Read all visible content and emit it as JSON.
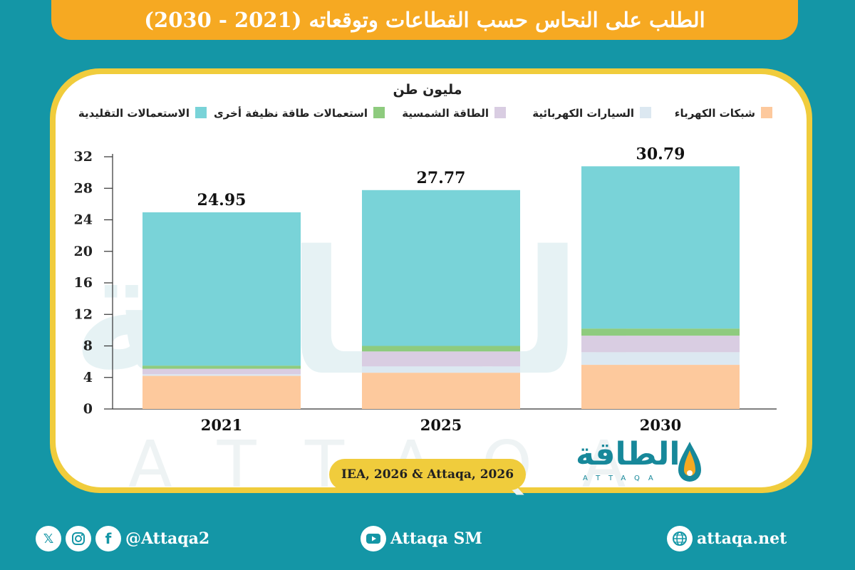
{
  "header": {
    "title": "الطلب على النحاس حسب القطاعات وتوقعاته (2021 - 2030)"
  },
  "chart_data": {
    "type": "bar",
    "stacked": true,
    "unit_label": "مليون طن",
    "categories": [
      "2021",
      "2025",
      "2030"
    ],
    "totals": [
      "24.95",
      "27.77",
      "30.79"
    ],
    "ylim": [
      0,
      32
    ],
    "yticks": [
      0,
      4,
      8,
      12,
      16,
      20,
      24,
      28,
      32
    ],
    "grid": false,
    "legend_position": "top",
    "series": [
      {
        "name": "شبكات الكهرباء",
        "color": "#fdc99d",
        "values": [
          4.2,
          4.6,
          5.6
        ]
      },
      {
        "name": "السيارات الكهربائية",
        "color": "#dce8f1",
        "values": [
          0.2,
          0.8,
          1.6
        ]
      },
      {
        "name": "الطاقة الشمسية",
        "color": "#d9cde2",
        "values": [
          0.7,
          1.9,
          2.1
        ]
      },
      {
        "name": "استعمالات طاقة نظيفة أخرى",
        "color": "#8ecb7e",
        "values": [
          0.4,
          0.7,
          0.9
        ]
      },
      {
        "name": "الاستعمالات التقليدية",
        "color": "#79d3d8",
        "values": [
          19.45,
          19.77,
          20.59
        ]
      }
    ]
  },
  "source": {
    "text": "IEA, 2026 & Attaqa, 2026"
  },
  "brand": {
    "logo_text": "الطاقة",
    "logo_sub": "ATTAQA",
    "watermark_ar": "الطاقة",
    "watermark_en": "ATTAQA"
  },
  "footer": {
    "social_handle": "@Attaqa2",
    "youtube_label": "Attaqa SM",
    "website": "attaqa.net",
    "icons": [
      "x-icon",
      "instagram-icon",
      "facebook-icon",
      "youtube-icon",
      "globe-icon"
    ],
    "facebook_glyph": "f",
    "x_glyph": "𝕏"
  },
  "colors": {
    "background": "#1496a6",
    "accent_orange": "#f6a922",
    "accent_yellow": "#f0cc3c"
  }
}
